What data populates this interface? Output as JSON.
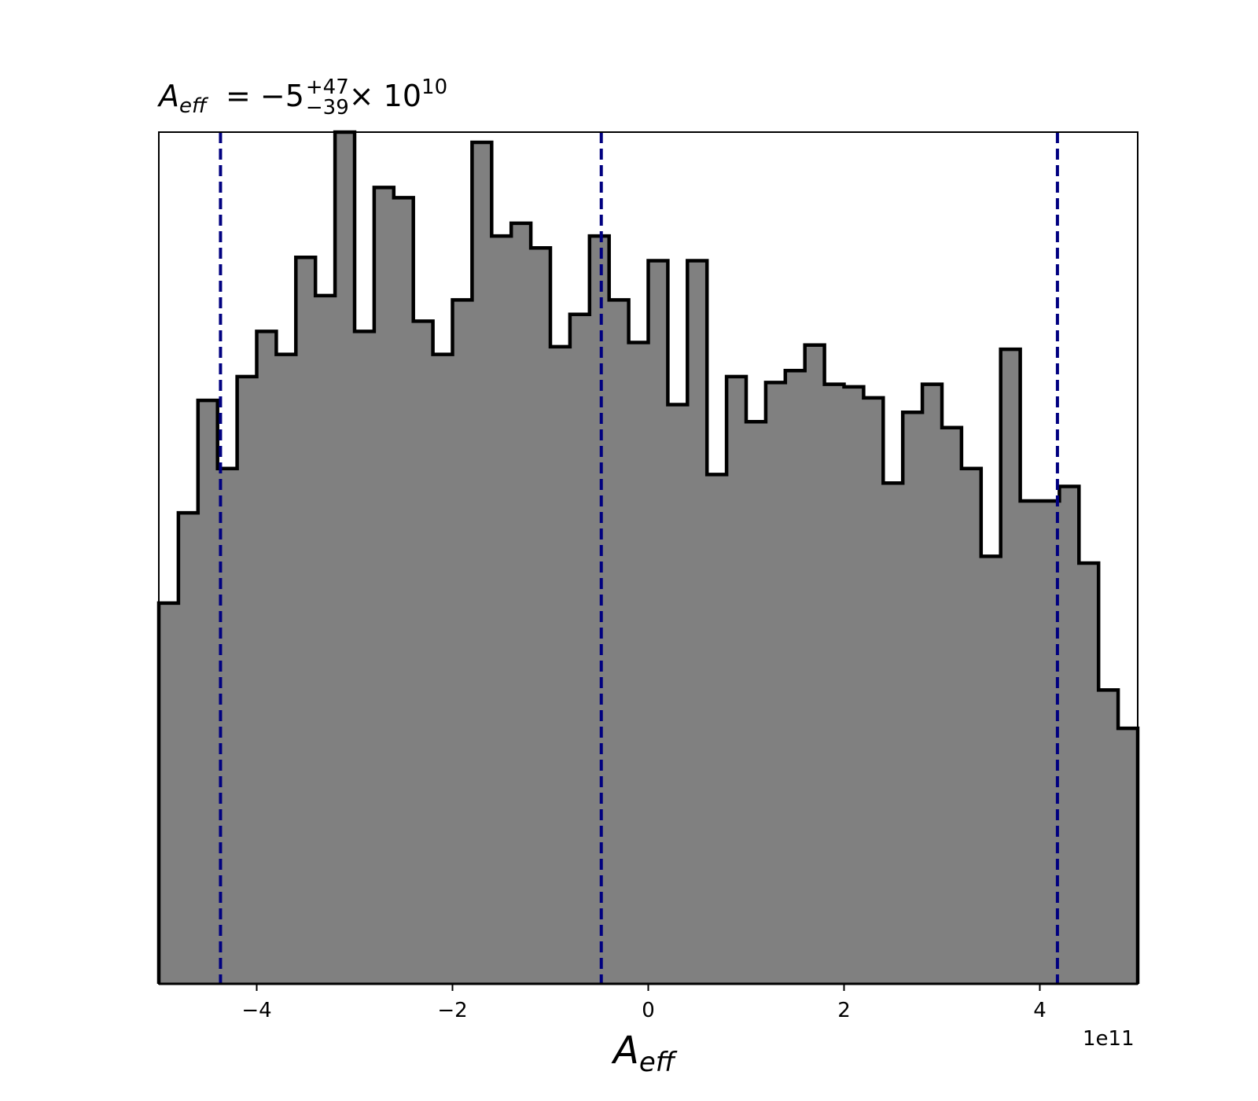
{
  "chart_data": {
    "type": "bar",
    "title": {
      "symbol": "A",
      "subscript": "eff",
      "equals": " = −5",
      "sup": "+47",
      "sub": "−39",
      "times": "× 10",
      "pow": "10"
    },
    "xlabel": {
      "symbol": "A",
      "subscript": "eff"
    },
    "ylabel": "",
    "x_offset_label": "1e11",
    "xlim": [
      -5.0,
      5.0
    ],
    "ylim": [
      0,
      1
    ],
    "x_ticks": [
      -4,
      -2,
      0,
      2,
      4
    ],
    "x_tick_labels": [
      "−4",
      "−2",
      "0",
      "2",
      "4"
    ],
    "y_ticks_shown": false,
    "bin_edges": [
      -5.0,
      -4.8,
      -4.6,
      -4.4,
      -4.2,
      -4.0,
      -3.8,
      -3.6,
      -3.4,
      -3.2,
      -3.0,
      -2.8,
      -2.6,
      -2.4,
      -2.2,
      -2.0,
      -1.8,
      -1.6,
      -1.4,
      -1.2,
      -1.0,
      -0.8,
      -0.6,
      -0.4,
      -0.2,
      0.0,
      0.2,
      0.4,
      0.6,
      0.8,
      1.0,
      1.2,
      1.4,
      1.6,
      1.8,
      2.0,
      2.2,
      2.4,
      2.6,
      2.8,
      3.0,
      3.2,
      3.4,
      3.6,
      3.8,
      4.0,
      4.2,
      4.4,
      4.6,
      4.8,
      5.0
    ],
    "values": [
      0.447,
      0.553,
      0.685,
      0.605,
      0.713,
      0.766,
      0.739,
      0.853,
      0.808,
      1.0,
      0.766,
      0.935,
      0.923,
      0.778,
      0.739,
      0.803,
      0.988,
      0.878,
      0.893,
      0.864,
      0.748,
      0.786,
      0.878,
      0.803,
      0.753,
      0.849,
      0.68,
      0.849,
      0.598,
      0.713,
      0.66,
      0.706,
      0.72,
      0.75,
      0.704,
      0.701,
      0.688,
      0.588,
      0.671,
      0.704,
      0.653,
      0.605,
      0.502,
      0.745,
      0.567,
      0.567,
      0.584,
      0.494,
      0.345,
      0.3
    ],
    "vlines": [
      -4.37,
      -0.48,
      4.18
    ],
    "colors": {
      "fill": "#808080",
      "edge": "#000000",
      "vline": "#000080"
    },
    "grid": false
  }
}
